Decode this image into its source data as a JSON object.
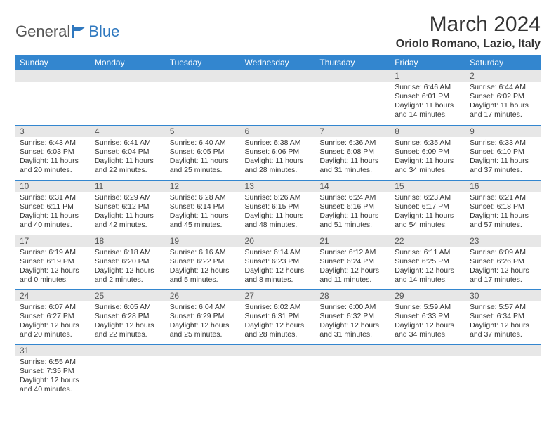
{
  "logo": {
    "part1": "General",
    "part2": "Blue"
  },
  "title": "March 2024",
  "subtitle": "Oriolo Romano, Lazio, Italy",
  "columns": [
    "Sunday",
    "Monday",
    "Tuesday",
    "Wednesday",
    "Thursday",
    "Friday",
    "Saturday"
  ],
  "colors": {
    "header_bg": "#3386cf",
    "header_fg": "#ffffff",
    "daynum_bg": "#e7e7e7",
    "border": "#3386cf",
    "brand_blue": "#2f78bf"
  },
  "weeks": [
    [
      {
        "n": "",
        "l1": "",
        "l2": "",
        "l3": "",
        "l4": ""
      },
      {
        "n": "",
        "l1": "",
        "l2": "",
        "l3": "",
        "l4": ""
      },
      {
        "n": "",
        "l1": "",
        "l2": "",
        "l3": "",
        "l4": ""
      },
      {
        "n": "",
        "l1": "",
        "l2": "",
        "l3": "",
        "l4": ""
      },
      {
        "n": "",
        "l1": "",
        "l2": "",
        "l3": "",
        "l4": ""
      },
      {
        "n": "1",
        "l1": "Sunrise: 6:46 AM",
        "l2": "Sunset: 6:01 PM",
        "l3": "Daylight: 11 hours",
        "l4": "and 14 minutes."
      },
      {
        "n": "2",
        "l1": "Sunrise: 6:44 AM",
        "l2": "Sunset: 6:02 PM",
        "l3": "Daylight: 11 hours",
        "l4": "and 17 minutes."
      }
    ],
    [
      {
        "n": "3",
        "l1": "Sunrise: 6:43 AM",
        "l2": "Sunset: 6:03 PM",
        "l3": "Daylight: 11 hours",
        "l4": "and 20 minutes."
      },
      {
        "n": "4",
        "l1": "Sunrise: 6:41 AM",
        "l2": "Sunset: 6:04 PM",
        "l3": "Daylight: 11 hours",
        "l4": "and 22 minutes."
      },
      {
        "n": "5",
        "l1": "Sunrise: 6:40 AM",
        "l2": "Sunset: 6:05 PM",
        "l3": "Daylight: 11 hours",
        "l4": "and 25 minutes."
      },
      {
        "n": "6",
        "l1": "Sunrise: 6:38 AM",
        "l2": "Sunset: 6:06 PM",
        "l3": "Daylight: 11 hours",
        "l4": "and 28 minutes."
      },
      {
        "n": "7",
        "l1": "Sunrise: 6:36 AM",
        "l2": "Sunset: 6:08 PM",
        "l3": "Daylight: 11 hours",
        "l4": "and 31 minutes."
      },
      {
        "n": "8",
        "l1": "Sunrise: 6:35 AM",
        "l2": "Sunset: 6:09 PM",
        "l3": "Daylight: 11 hours",
        "l4": "and 34 minutes."
      },
      {
        "n": "9",
        "l1": "Sunrise: 6:33 AM",
        "l2": "Sunset: 6:10 PM",
        "l3": "Daylight: 11 hours",
        "l4": "and 37 minutes."
      }
    ],
    [
      {
        "n": "10",
        "l1": "Sunrise: 6:31 AM",
        "l2": "Sunset: 6:11 PM",
        "l3": "Daylight: 11 hours",
        "l4": "and 40 minutes."
      },
      {
        "n": "11",
        "l1": "Sunrise: 6:29 AM",
        "l2": "Sunset: 6:12 PM",
        "l3": "Daylight: 11 hours",
        "l4": "and 42 minutes."
      },
      {
        "n": "12",
        "l1": "Sunrise: 6:28 AM",
        "l2": "Sunset: 6:14 PM",
        "l3": "Daylight: 11 hours",
        "l4": "and 45 minutes."
      },
      {
        "n": "13",
        "l1": "Sunrise: 6:26 AM",
        "l2": "Sunset: 6:15 PM",
        "l3": "Daylight: 11 hours",
        "l4": "and 48 minutes."
      },
      {
        "n": "14",
        "l1": "Sunrise: 6:24 AM",
        "l2": "Sunset: 6:16 PM",
        "l3": "Daylight: 11 hours",
        "l4": "and 51 minutes."
      },
      {
        "n": "15",
        "l1": "Sunrise: 6:23 AM",
        "l2": "Sunset: 6:17 PM",
        "l3": "Daylight: 11 hours",
        "l4": "and 54 minutes."
      },
      {
        "n": "16",
        "l1": "Sunrise: 6:21 AM",
        "l2": "Sunset: 6:18 PM",
        "l3": "Daylight: 11 hours",
        "l4": "and 57 minutes."
      }
    ],
    [
      {
        "n": "17",
        "l1": "Sunrise: 6:19 AM",
        "l2": "Sunset: 6:19 PM",
        "l3": "Daylight: 12 hours",
        "l4": "and 0 minutes."
      },
      {
        "n": "18",
        "l1": "Sunrise: 6:18 AM",
        "l2": "Sunset: 6:20 PM",
        "l3": "Daylight: 12 hours",
        "l4": "and 2 minutes."
      },
      {
        "n": "19",
        "l1": "Sunrise: 6:16 AM",
        "l2": "Sunset: 6:22 PM",
        "l3": "Daylight: 12 hours",
        "l4": "and 5 minutes."
      },
      {
        "n": "20",
        "l1": "Sunrise: 6:14 AM",
        "l2": "Sunset: 6:23 PM",
        "l3": "Daylight: 12 hours",
        "l4": "and 8 minutes."
      },
      {
        "n": "21",
        "l1": "Sunrise: 6:12 AM",
        "l2": "Sunset: 6:24 PM",
        "l3": "Daylight: 12 hours",
        "l4": "and 11 minutes."
      },
      {
        "n": "22",
        "l1": "Sunrise: 6:11 AM",
        "l2": "Sunset: 6:25 PM",
        "l3": "Daylight: 12 hours",
        "l4": "and 14 minutes."
      },
      {
        "n": "23",
        "l1": "Sunrise: 6:09 AM",
        "l2": "Sunset: 6:26 PM",
        "l3": "Daylight: 12 hours",
        "l4": "and 17 minutes."
      }
    ],
    [
      {
        "n": "24",
        "l1": "Sunrise: 6:07 AM",
        "l2": "Sunset: 6:27 PM",
        "l3": "Daylight: 12 hours",
        "l4": "and 20 minutes."
      },
      {
        "n": "25",
        "l1": "Sunrise: 6:05 AM",
        "l2": "Sunset: 6:28 PM",
        "l3": "Daylight: 12 hours",
        "l4": "and 22 minutes."
      },
      {
        "n": "26",
        "l1": "Sunrise: 6:04 AM",
        "l2": "Sunset: 6:29 PM",
        "l3": "Daylight: 12 hours",
        "l4": "and 25 minutes."
      },
      {
        "n": "27",
        "l1": "Sunrise: 6:02 AM",
        "l2": "Sunset: 6:31 PM",
        "l3": "Daylight: 12 hours",
        "l4": "and 28 minutes."
      },
      {
        "n": "28",
        "l1": "Sunrise: 6:00 AM",
        "l2": "Sunset: 6:32 PM",
        "l3": "Daylight: 12 hours",
        "l4": "and 31 minutes."
      },
      {
        "n": "29",
        "l1": "Sunrise: 5:59 AM",
        "l2": "Sunset: 6:33 PM",
        "l3": "Daylight: 12 hours",
        "l4": "and 34 minutes."
      },
      {
        "n": "30",
        "l1": "Sunrise: 5:57 AM",
        "l2": "Sunset: 6:34 PM",
        "l3": "Daylight: 12 hours",
        "l4": "and 37 minutes."
      }
    ],
    [
      {
        "n": "31",
        "l1": "Sunrise: 6:55 AM",
        "l2": "Sunset: 7:35 PM",
        "l3": "Daylight: 12 hours",
        "l4": "and 40 minutes."
      },
      {
        "n": "",
        "l1": "",
        "l2": "",
        "l3": "",
        "l4": ""
      },
      {
        "n": "",
        "l1": "",
        "l2": "",
        "l3": "",
        "l4": ""
      },
      {
        "n": "",
        "l1": "",
        "l2": "",
        "l3": "",
        "l4": ""
      },
      {
        "n": "",
        "l1": "",
        "l2": "",
        "l3": "",
        "l4": ""
      },
      {
        "n": "",
        "l1": "",
        "l2": "",
        "l3": "",
        "l4": ""
      },
      {
        "n": "",
        "l1": "",
        "l2": "",
        "l3": "",
        "l4": ""
      }
    ]
  ]
}
